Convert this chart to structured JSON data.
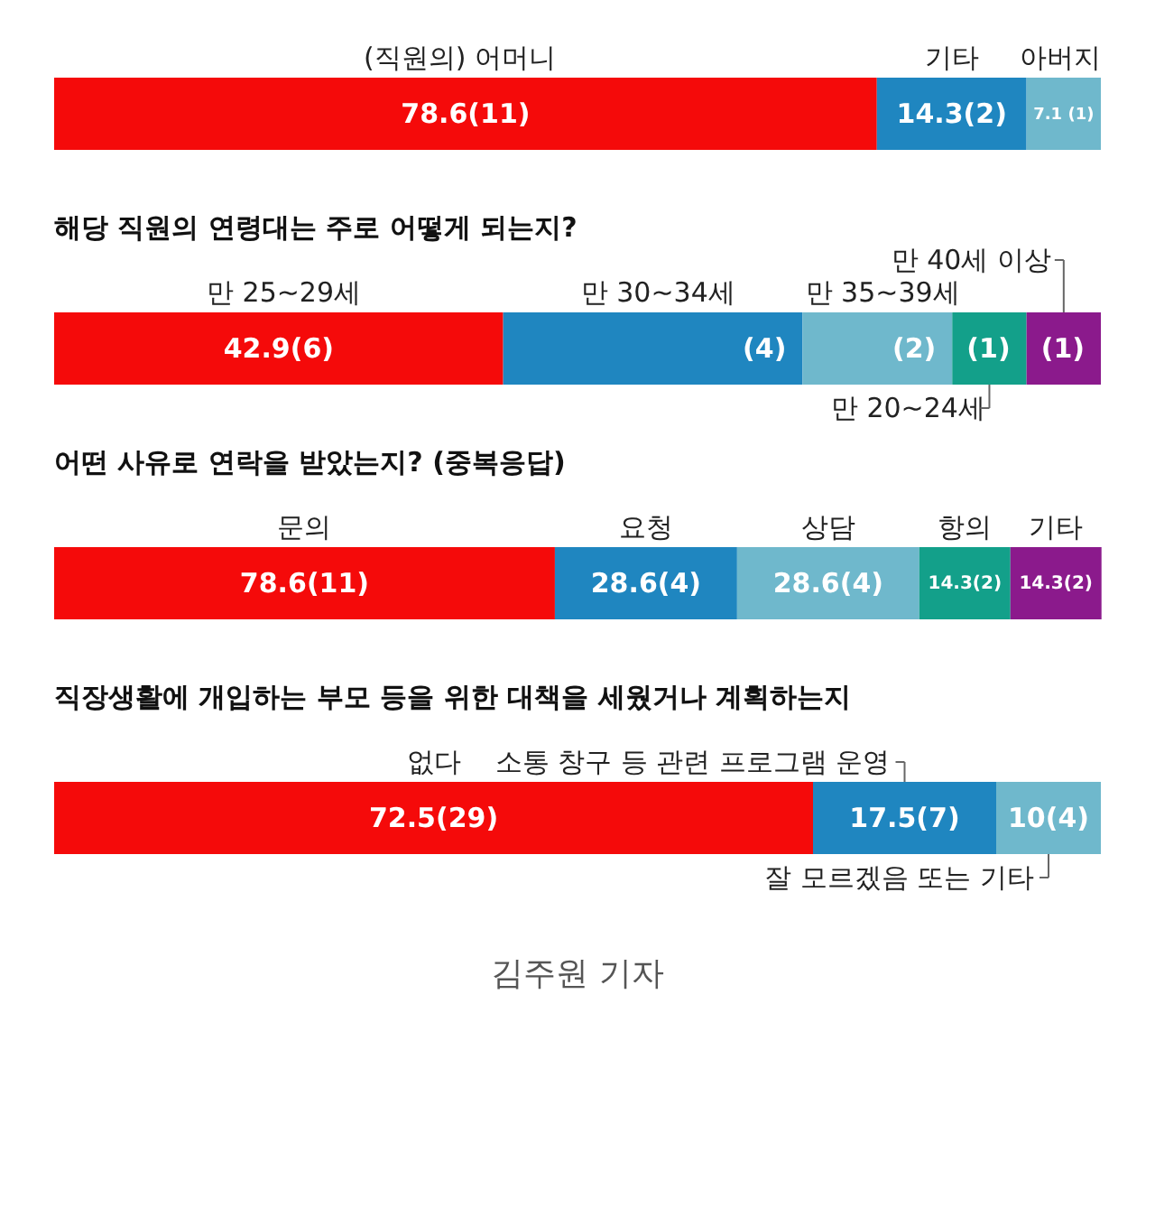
{
  "chart_data": [
    {
      "type": "bar",
      "orientation": "horizontal",
      "stacked": true,
      "categories": [
        null
      ],
      "xlim": [
        0,
        100
      ],
      "tick_labels": false,
      "legend": false,
      "series": [
        {
          "name": "(직원의) 어머니",
          "color": "#f50a0a",
          "values": [
            78.6
          ],
          "value_labels": [
            "78.6(11)"
          ]
        },
        {
          "name": "기타",
          "color": "#1f86c0",
          "values": [
            14.3
          ],
          "value_labels": [
            "14.3(2)"
          ]
        },
        {
          "name": "아버지",
          "color": "#6fb8cc",
          "values": [
            7.1
          ],
          "value_labels": [
            "7.1 (1)"
          ]
        }
      ]
    },
    {
      "type": "bar",
      "orientation": "horizontal",
      "stacked": true,
      "title": "해당 직원의 연령대는 주로 어떻게 되는지?",
      "categories": [
        null
      ],
      "xlim": [
        0,
        100
      ],
      "tick_labels": false,
      "legend": false,
      "series": [
        {
          "name": "만 25~29세",
          "color": "#f50a0a",
          "values": [
            42.9
          ],
          "value_labels": [
            "42.9(6)"
          ]
        },
        {
          "name": "만 30~34세",
          "color": "#1f86c0",
          "values": [
            28.6
          ]
        },
        {
          "name": "만 35~39세",
          "color": "#6fb8cc",
          "values": [
            14.3
          ]
        },
        {
          "name": "만 20~24세",
          "color": "#13a08a",
          "values": [
            7.1
          ]
        },
        {
          "name": "만 40세 이상",
          "color": "#8b1a8c",
          "values": [
            7.1
          ]
        }
      ],
      "annotations": [
        {
          "text": "(4)",
          "x": 71.5
        },
        {
          "text": "(2)",
          "x": 85.8
        },
        {
          "text": "(1)",
          "x": 92.9
        },
        {
          "text": "(1)",
          "x": 100.0
        }
      ]
    },
    {
      "type": "bar",
      "orientation": "horizontal",
      "stacked": true,
      "title": "어떤 사유로 연락을 받았는지? (중복응답)",
      "categories": [
        null
      ],
      "xlim": [
        0,
        164.3
      ],
      "tick_labels": false,
      "legend": false,
      "series": [
        {
          "name": "문의",
          "color": "#f50a0a",
          "values": [
            78.6
          ],
          "value_labels": [
            "78.6(11)"
          ]
        },
        {
          "name": "요청",
          "color": "#1f86c0",
          "values": [
            28.6
          ],
          "value_labels": [
            "28.6(4)"
          ]
        },
        {
          "name": "상담",
          "color": "#6fb8cc",
          "values": [
            28.6
          ],
          "value_labels": [
            "28.6(4)"
          ]
        },
        {
          "name": "항의",
          "color": "#13a08a",
          "values": [
            14.3
          ],
          "value_labels": [
            "14.3(2)"
          ]
        },
        {
          "name": "기타",
          "color": "#8b1a8c",
          "values": [
            14.3
          ],
          "value_labels": [
            "14.3(2)"
          ]
        }
      ]
    },
    {
      "type": "bar",
      "orientation": "horizontal",
      "stacked": true,
      "title": "직장생활에 개입하는 부모 등을 위한 대책을 세웠거나 계획하는지",
      "categories": [
        null
      ],
      "xlim": [
        0,
        100
      ],
      "tick_labels": false,
      "legend": false,
      "annotations": [
        "김주원 기자"
      ],
      "series": [
        {
          "name": "없다",
          "color": "#f50a0a",
          "values": [
            72.5
          ],
          "value_labels": [
            "72.5(29)"
          ]
        },
        {
          "name": "소통 창구 등 관련 프로그램 운영",
          "color": "#1f86c0",
          "values": [
            17.5
          ],
          "value_labels": [
            "17.5(7)"
          ]
        },
        {
          "name": "잘 모르겠음 또는 기타",
          "color": "#6fb8cc",
          "values": [
            10
          ],
          "value_labels": [
            "10(4)"
          ]
        }
      ]
    }
  ]
}
